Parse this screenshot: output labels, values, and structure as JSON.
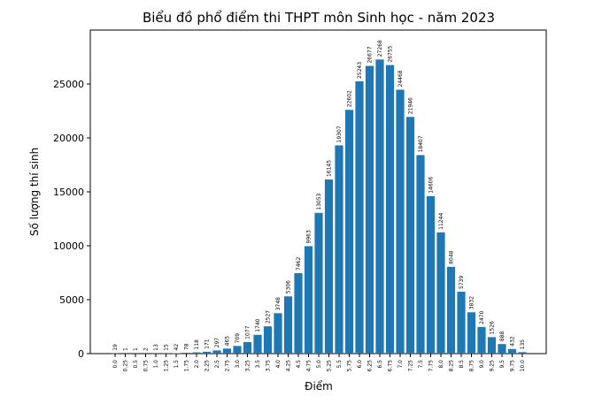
{
  "chart_data": {
    "type": "bar",
    "title": "Biểu đồ phổ điểm thi THPT môn Sinh học - năm 2023",
    "xlabel": "Điểm",
    "ylabel": "Số lượng thí sinh",
    "categories": [
      "0.0",
      "0.25",
      "0.5",
      "0.75",
      "1.0",
      "1.25",
      "1.5",
      "1.75",
      "2.0",
      "2.25",
      "2.5",
      "2.75",
      "3.0",
      "3.25",
      "3.5",
      "3.75",
      "4.0",
      "4.25",
      "4.5",
      "4.75",
      "5.0",
      "5.25",
      "5.5",
      "5.75",
      "6.0",
      "6.25",
      "6.5",
      "6.75",
      "7.0",
      "7.25",
      "7.5",
      "7.75",
      "8.0",
      "8.25",
      "8.5",
      "8.75",
      "9.0",
      "9.25",
      "9.5",
      "9.75",
      "10.0"
    ],
    "values": [
      19,
      1,
      1,
      2,
      13,
      15,
      42,
      78,
      118,
      171,
      297,
      465,
      709,
      1077,
      1740,
      2527,
      3748,
      5306,
      7462,
      9963,
      13053,
      16145,
      19307,
      22602,
      25243,
      26677,
      27268,
      26755,
      24468,
      21946,
      18407,
      14606,
      11244,
      8048,
      5739,
      3832,
      2470,
      1526,
      888,
      432,
      135
    ],
    "color": "#1f77b4",
    "ylim": [
      0,
      30000
    ],
    "yticks": [
      0,
      5000,
      10000,
      15000,
      20000,
      25000
    ],
    "grid": false
  }
}
